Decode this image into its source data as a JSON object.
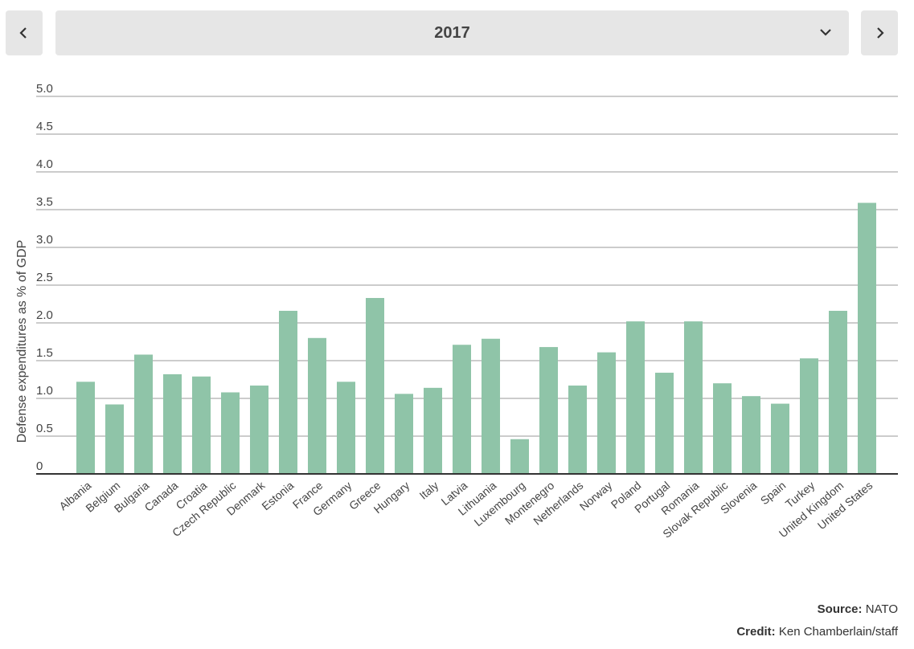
{
  "controls": {
    "year": "2017",
    "prev_icon": "chevron-left-icon",
    "next_icon": "chevron-right-icon",
    "dropdown_icon": "chevron-down-icon"
  },
  "footer": {
    "source_label": "Source:",
    "source_value": "NATO",
    "credit_label": "Credit:",
    "credit_value": "Ken Chamberlain/staff"
  },
  "colors": {
    "bar": "#8fc4a8",
    "grid": "#9a9a9a",
    "baseline": "#333333",
    "control_bg": "#e6e6e6"
  },
  "chart_data": {
    "type": "bar",
    "title": "",
    "xlabel": "",
    "ylabel": "Defense expenditures as % of GDP",
    "ylim": [
      0,
      5.0
    ],
    "yticks": [
      0,
      0.5,
      1.0,
      1.5,
      2.0,
      2.5,
      3.0,
      3.5,
      4.0,
      4.5,
      5.0
    ],
    "ytick_labels": [
      "0",
      "0.5",
      "1.0",
      "1.5",
      "2.0",
      "2.5",
      "3.0",
      "3.5",
      "4.0",
      "4.5",
      "5.0"
    ],
    "grid": true,
    "categories": [
      "Albania",
      "Belgium",
      "Bulgaria",
      "Canada",
      "Croatia",
      "Czech Republic",
      "Denmark",
      "Estonia",
      "France",
      "Germany",
      "Greece",
      "Hungary",
      "Italy",
      "Latvia",
      "Lithuania",
      "Luxembourg",
      "Montenegro",
      "Netherlands",
      "Norway",
      "Poland",
      "Portugal",
      "Romania",
      "Slovak Republic",
      "Slovenia",
      "Spain",
      "Turkey",
      "United Kingdom",
      "United States"
    ],
    "values": [
      1.22,
      0.92,
      1.58,
      1.32,
      1.29,
      1.08,
      1.17,
      2.16,
      1.8,
      1.22,
      2.33,
      1.06,
      1.14,
      1.71,
      1.79,
      0.46,
      1.68,
      1.17,
      1.61,
      2.02,
      1.34,
      2.02,
      1.2,
      1.03,
      0.93,
      1.53,
      2.16,
      3.59
    ]
  }
}
